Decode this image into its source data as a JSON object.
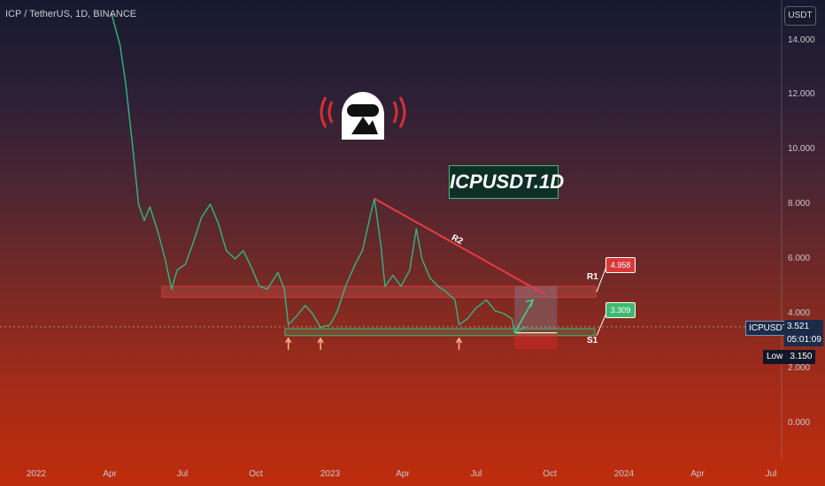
{
  "header": {
    "symbol_title": "ICP / TetherUS, 1D, BINANCE",
    "currency_button": "USDT"
  },
  "watermark": {
    "brand_label": "ICPUSDT.1D",
    "logo_icon": "astronaut-helmet-icon",
    "logo_color": "#d83030"
  },
  "y_axis": {
    "ticks": [
      "14.000",
      "12.000",
      "10.000",
      "8.000",
      "6.000",
      "4.000",
      "2.000",
      "0.000"
    ],
    "tick_values": [
      14,
      12,
      10,
      8,
      6,
      4,
      2,
      0
    ]
  },
  "x_axis": {
    "ticks": [
      "2022",
      "Apr",
      "Jul",
      "Oct",
      "2023",
      "Apr",
      "Jul",
      "Oct",
      "2024",
      "Apr",
      "Jul"
    ]
  },
  "annotations": {
    "r1_label": "R1",
    "s1_label": "S1",
    "r2_label": "R2",
    "r1_value": "4.958",
    "s1_value": "3.309",
    "r1_color": "#d83a3a",
    "s1_color": "#3fb971"
  },
  "price_box": {
    "symbol": "ICPUSDT",
    "last_price": "3.521",
    "countdown": "05:01:09",
    "low_label": "Low",
    "low_value": "3.150"
  },
  "chart_data": {
    "type": "line",
    "title": "ICP / TetherUS, 1D, BINANCE",
    "xlabel": "",
    "ylabel": "",
    "ylim": [
      -1.0,
      15.0
    ],
    "x_range": [
      "2021-12",
      "2024-08"
    ],
    "grid": false,
    "series": [
      {
        "name": "ICPUSDT",
        "color": "#2fb884",
        "points": [
          [
            "2022-04-04",
            15.0
          ],
          [
            "2022-04-15",
            13.8
          ],
          [
            "2022-04-22",
            12.4
          ],
          [
            "2022-05-01",
            10.0
          ],
          [
            "2022-05-08",
            8.0
          ],
          [
            "2022-05-15",
            7.4
          ],
          [
            "2022-05-22",
            7.9
          ],
          [
            "2022-06-01",
            7.0
          ],
          [
            "2022-06-10",
            6.0
          ],
          [
            "2022-06-18",
            4.9
          ],
          [
            "2022-06-25",
            5.6
          ],
          [
            "2022-07-05",
            5.8
          ],
          [
            "2022-07-15",
            6.6
          ],
          [
            "2022-07-25",
            7.5
          ],
          [
            "2022-08-05",
            8.0
          ],
          [
            "2022-08-15",
            7.3
          ],
          [
            "2022-08-25",
            6.3
          ],
          [
            "2022-09-05",
            6.0
          ],
          [
            "2022-09-15",
            6.3
          ],
          [
            "2022-09-25",
            5.7
          ],
          [
            "2022-10-05",
            5.0
          ],
          [
            "2022-10-15",
            4.9
          ],
          [
            "2022-10-28",
            5.5
          ],
          [
            "2022-11-05",
            4.9
          ],
          [
            "2022-11-10",
            3.6
          ],
          [
            "2022-11-20",
            3.9
          ],
          [
            "2022-12-01",
            4.3
          ],
          [
            "2022-12-10",
            4.0
          ],
          [
            "2022-12-20",
            3.5
          ],
          [
            "2023-01-01",
            3.6
          ],
          [
            "2023-01-10",
            4.1
          ],
          [
            "2023-01-20",
            5.0
          ],
          [
            "2023-02-01",
            5.8
          ],
          [
            "2023-02-10",
            6.3
          ],
          [
            "2023-02-20",
            7.6
          ],
          [
            "2023-02-25",
            8.2
          ],
          [
            "2023-03-05",
            6.5
          ],
          [
            "2023-03-10",
            5.0
          ],
          [
            "2023-03-20",
            5.4
          ],
          [
            "2023-03-30",
            5.0
          ],
          [
            "2023-04-10",
            5.6
          ],
          [
            "2023-04-18",
            7.1
          ],
          [
            "2023-04-25",
            6.0
          ],
          [
            "2023-05-05",
            5.3
          ],
          [
            "2023-05-15",
            5.0
          ],
          [
            "2023-05-25",
            4.8
          ],
          [
            "2023-06-05",
            4.5
          ],
          [
            "2023-06-10",
            3.6
          ],
          [
            "2023-06-20",
            3.8
          ],
          [
            "2023-07-01",
            4.2
          ],
          [
            "2023-07-14",
            4.5
          ],
          [
            "2023-07-25",
            4.1
          ],
          [
            "2023-08-05",
            4.0
          ],
          [
            "2023-08-15",
            3.8
          ],
          [
            "2023-08-18",
            3.3
          ],
          [
            "2023-08-25",
            3.4
          ],
          [
            "2023-09-01",
            3.521
          ]
        ]
      }
    ],
    "levels": {
      "resistance_zone": [
        4.6,
        5.0
      ],
      "support_zone": [
        3.2,
        3.45
      ],
      "r1": 4.958,
      "s1": 3.309
    },
    "trendline_r2": [
      [
        "2023-02-25",
        8.2
      ],
      [
        "2023-09-25",
        4.7
      ]
    ],
    "projection_arrow": [
      [
        "2023-08-18",
        3.3
      ],
      [
        "2023-09-10",
        4.5
      ]
    ],
    "support_touch_arrows": [
      "2022-11-10",
      "2022-12-20",
      "2023-06-10"
    ]
  }
}
